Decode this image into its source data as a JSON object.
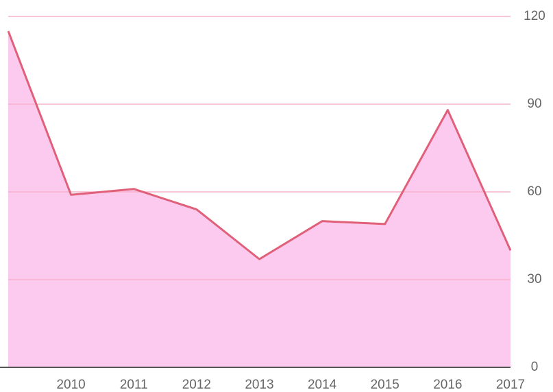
{
  "chart_data": {
    "type": "area",
    "categories": [
      null,
      "2010",
      "2011",
      "2012",
      "2013",
      "2014",
      "2015",
      "2016",
      "2017"
    ],
    "values": [
      115,
      59,
      61,
      54,
      37,
      50,
      49,
      88,
      40
    ],
    "color": "#e0607a",
    "fill_color": "#fdcaef",
    "grid_color": "#f7b0c8",
    "ylim": [
      0,
      120
    ],
    "yticks": [
      0,
      30,
      60,
      90,
      120
    ],
    "grid": true,
    "y_axis_side": "right"
  }
}
